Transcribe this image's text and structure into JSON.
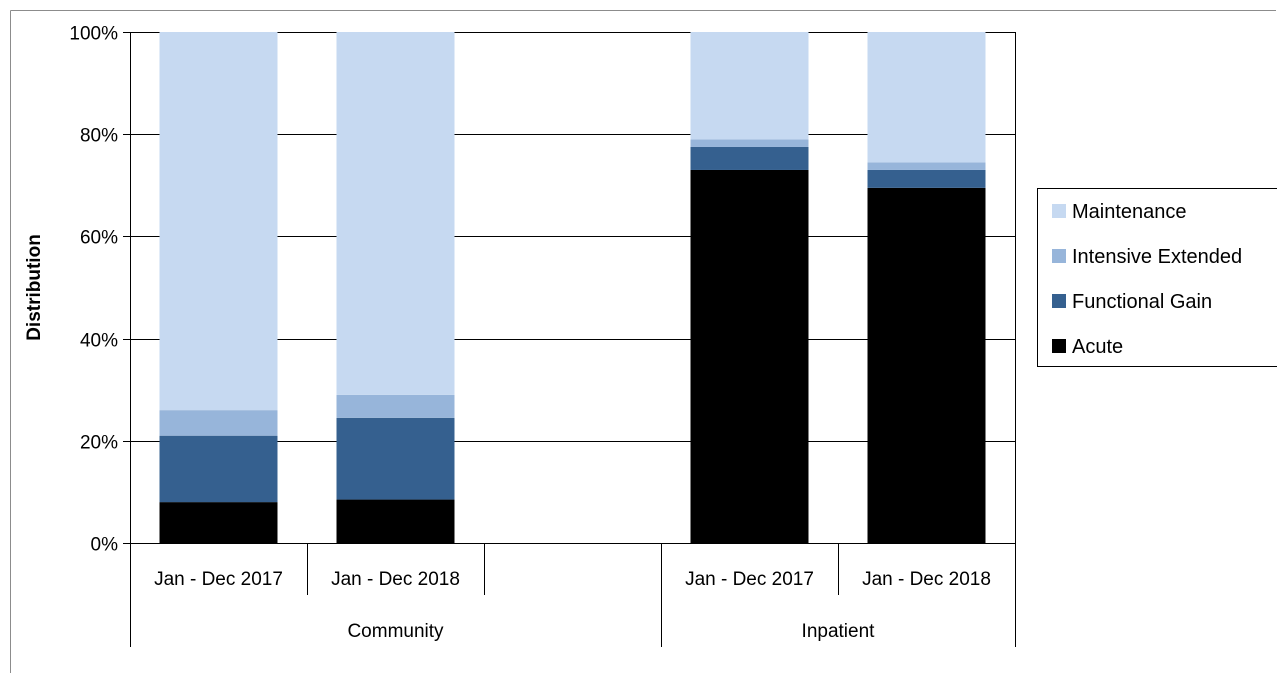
{
  "chart_data": {
    "type": "bar",
    "stacked": true,
    "percent": true,
    "ylabel": "Distribution",
    "ylim": [
      0,
      100
    ],
    "yticks": [
      "0%",
      "20%",
      "40%",
      "60%",
      "80%",
      "100%"
    ],
    "groups": [
      {
        "label": "Community",
        "categories": [
          "Jan - Dec 2017",
          "Jan - Dec 2018"
        ]
      },
      {
        "label": "Inpatient",
        "categories": [
          "Jan - Dec 2017",
          "Jan - Dec 2018"
        ]
      }
    ],
    "categories": [
      "Community: Jan - Dec 2017",
      "Community: Jan - Dec 2018",
      "Inpatient: Jan - Dec 2017",
      "Inpatient: Jan - Dec 2018"
    ],
    "series": [
      {
        "name": "Acute",
        "color": "#000000",
        "values": [
          8,
          8.5,
          73,
          69.5
        ]
      },
      {
        "name": "Functional Gain",
        "color": "#35608f",
        "values": [
          13,
          16,
          4.5,
          3.5
        ]
      },
      {
        "name": "Intensive Extended",
        "color": "#97b5da",
        "values": [
          5,
          4.5,
          1.5,
          1.5
        ]
      },
      {
        "name": "Maintenance",
        "color": "#c6d9f1",
        "values": [
          74,
          71,
          21,
          25.5
        ]
      }
    ],
    "legend_order": [
      "Maintenance",
      "Intensive Extended",
      "Functional Gain",
      "Acute"
    ],
    "legend_position": "right",
    "grid": true
  }
}
